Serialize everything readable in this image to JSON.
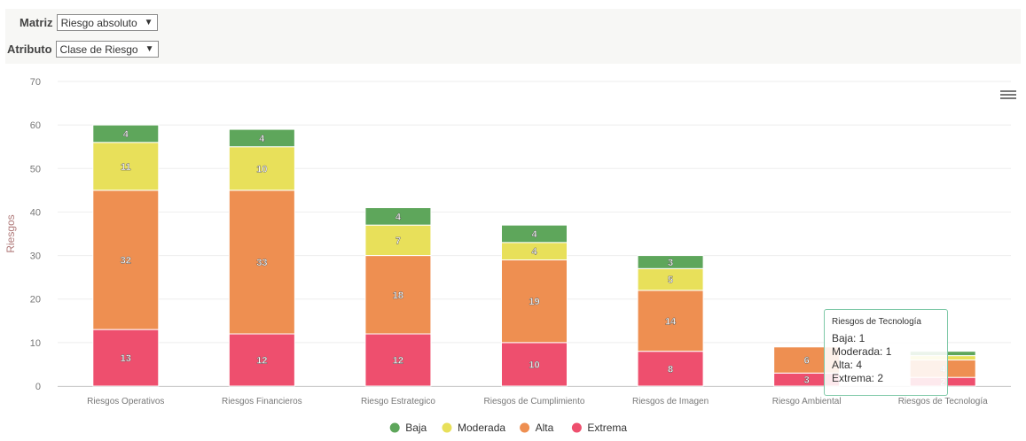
{
  "controls": {
    "matriz_label": "Matriz",
    "matriz_value": "Riesgo absoluto",
    "atributo_label": "Atributo",
    "atributo_value": "Clase de Riesgo"
  },
  "colors": {
    "Baja": "#5ea65b",
    "Moderada": "#e8e05a",
    "Alta": "#ee8f51",
    "Extrema": "#ee4f6e"
  },
  "chart_data": {
    "type": "bar",
    "stacked": true,
    "categories": [
      "Riesgos Operativos",
      "Riesgos Financieros",
      "Riesgo Estrategico",
      "Riesgos de Cumplimiento",
      "Riesgos de Imagen",
      "Riesgo Ambiental",
      "Riesgos de Tecnología"
    ],
    "series": [
      {
        "name": "Extrema",
        "values": [
          13,
          12,
          12,
          10,
          8,
          3,
          2
        ]
      },
      {
        "name": "Alta",
        "values": [
          32,
          33,
          18,
          19,
          14,
          6,
          4
        ]
      },
      {
        "name": "Moderada",
        "values": [
          11,
          10,
          7,
          4,
          5,
          0,
          1
        ]
      },
      {
        "name": "Baja",
        "values": [
          4,
          4,
          4,
          4,
          3,
          0,
          1
        ]
      }
    ],
    "ylabel": "Riesgos",
    "xlabel": "",
    "ylim": [
      0,
      70
    ],
    "yticks": [
      0,
      10,
      20,
      30,
      40,
      50,
      60,
      70
    ],
    "legend": [
      "Baja",
      "Moderada",
      "Alta",
      "Extrema"
    ],
    "legend_position": "bottom",
    "grid": true
  },
  "tooltip": {
    "title": "Riesgos de Tecnología",
    "lines": [
      "Baja: 1",
      "Moderada: 1",
      "Alta: 4",
      "Extrema: 2"
    ]
  }
}
